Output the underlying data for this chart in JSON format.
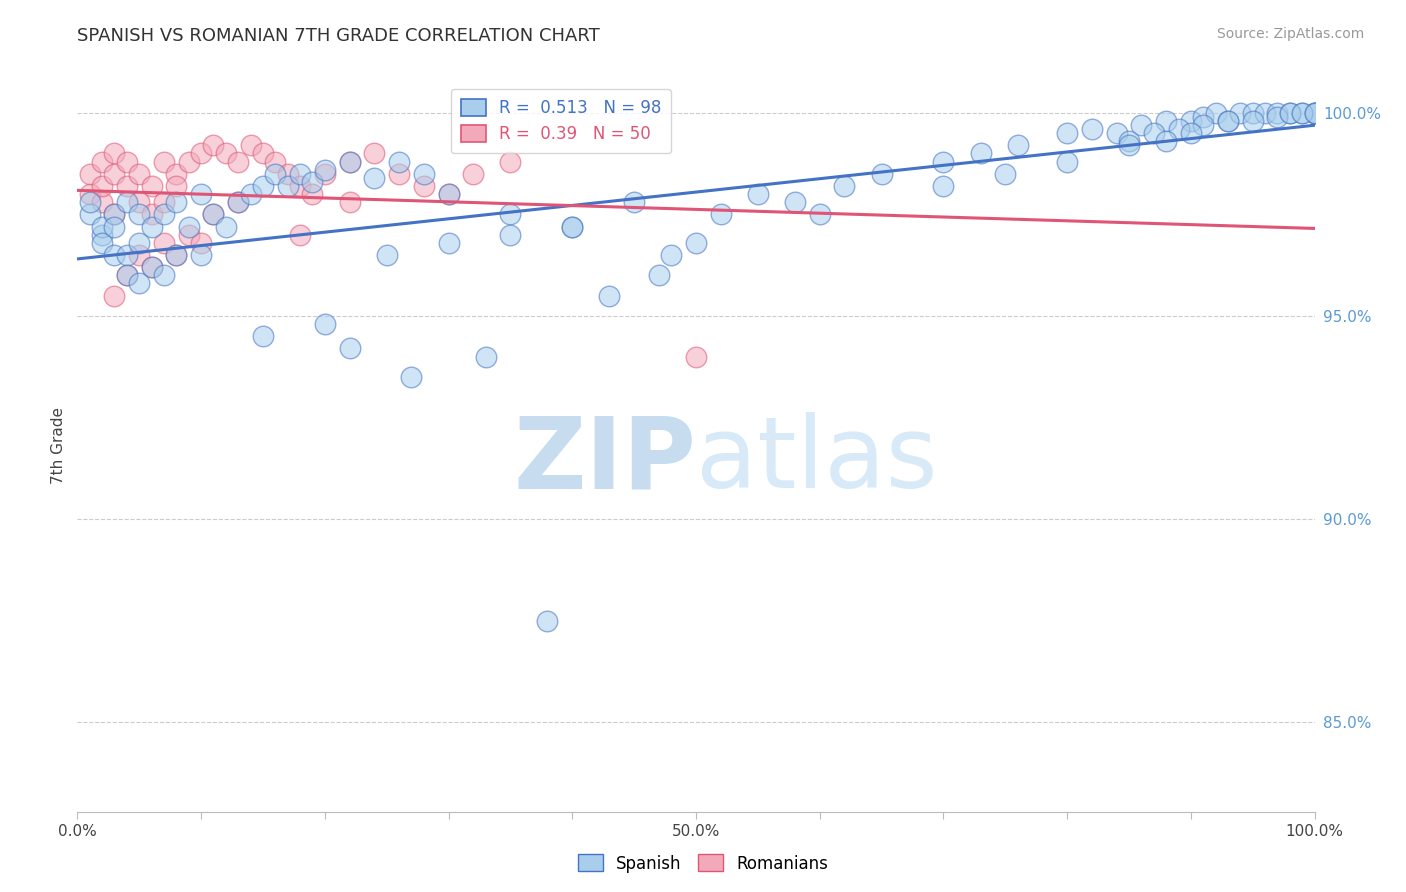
{
  "title": "SPANISH VS ROMANIAN 7TH GRADE CORRELATION CHART",
  "source": "Source: ZipAtlas.com",
  "ylabel": "7th Grade",
  "legend_labels": [
    "Spanish",
    "Romanians"
  ],
  "legend_R": [
    0.513,
    0.39
  ],
  "legend_N": [
    98,
    50
  ],
  "xlim": [
    0.0,
    1.0
  ],
  "ylim": [
    0.828,
    1.008
  ],
  "yticks": [
    0.85,
    0.9,
    0.95,
    1.0
  ],
  "ytick_labels": [
    "85.0%",
    "90.0%",
    "95.0%",
    "100.0%"
  ],
  "xticks": [
    0.0,
    0.1,
    0.2,
    0.3,
    0.4,
    0.5,
    0.6,
    0.7,
    0.8,
    0.9,
    1.0
  ],
  "xtick_labels": [
    "0.0%",
    "",
    "",
    "",
    "",
    "50.0%",
    "",
    "",
    "",
    "",
    "100.0%"
  ],
  "color_spanish": "#A8CEEC",
  "color_romanian": "#F2AABA",
  "color_line_spanish": "#4472C4",
  "color_line_romanian": "#E05575",
  "background_color": "#FFFFFF",
  "grid_color": "#CCCCCC",
  "spanish_x": [
    0.01,
    0.01,
    0.02,
    0.02,
    0.02,
    0.03,
    0.03,
    0.03,
    0.04,
    0.04,
    0.04,
    0.05,
    0.05,
    0.05,
    0.06,
    0.06,
    0.07,
    0.07,
    0.08,
    0.08,
    0.09,
    0.1,
    0.1,
    0.11,
    0.12,
    0.13,
    0.14,
    0.15,
    0.16,
    0.17,
    0.18,
    0.19,
    0.2,
    0.22,
    0.24,
    0.26,
    0.28,
    0.3,
    0.35,
    0.4,
    0.45,
    0.48,
    0.52,
    0.55,
    0.58,
    0.62,
    0.65,
    0.7,
    0.73,
    0.76,
    0.8,
    0.82,
    0.84,
    0.86,
    0.88,
    0.9,
    0.91,
    0.92,
    0.93,
    0.94,
    0.95,
    0.96,
    0.97,
    0.98,
    0.99,
    1.0,
    1.0,
    1.0,
    0.85,
    0.87,
    0.89,
    0.91,
    0.93,
    0.95,
    0.97,
    0.98,
    0.99,
    1.0,
    0.5,
    0.6,
    0.7,
    0.75,
    0.8,
    0.85,
    0.88,
    0.9,
    0.25,
    0.3,
    0.35,
    0.4,
    0.15,
    0.2,
    0.22,
    0.27,
    0.33,
    0.38,
    0.43,
    0.47
  ],
  "spanish_y": [
    0.975,
    0.978,
    0.97,
    0.972,
    0.968,
    0.975,
    0.972,
    0.965,
    0.978,
    0.965,
    0.96,
    0.975,
    0.968,
    0.958,
    0.972,
    0.962,
    0.975,
    0.96,
    0.978,
    0.965,
    0.972,
    0.98,
    0.965,
    0.975,
    0.972,
    0.978,
    0.98,
    0.982,
    0.985,
    0.982,
    0.985,
    0.983,
    0.986,
    0.988,
    0.984,
    0.988,
    0.985,
    0.98,
    0.975,
    0.972,
    0.978,
    0.965,
    0.975,
    0.98,
    0.978,
    0.982,
    0.985,
    0.988,
    0.99,
    0.992,
    0.995,
    0.996,
    0.995,
    0.997,
    0.998,
    0.998,
    0.999,
    1.0,
    0.998,
    1.0,
    1.0,
    1.0,
    1.0,
    1.0,
    1.0,
    1.0,
    1.0,
    1.0,
    0.993,
    0.995,
    0.996,
    0.997,
    0.998,
    0.998,
    0.999,
    1.0,
    1.0,
    1.0,
    0.968,
    0.975,
    0.982,
    0.985,
    0.988,
    0.992,
    0.993,
    0.995,
    0.965,
    0.968,
    0.97,
    0.972,
    0.945,
    0.948,
    0.942,
    0.935,
    0.94,
    0.875,
    0.955,
    0.96
  ],
  "romanian_x": [
    0.01,
    0.01,
    0.02,
    0.02,
    0.02,
    0.03,
    0.03,
    0.03,
    0.04,
    0.04,
    0.05,
    0.05,
    0.06,
    0.06,
    0.07,
    0.07,
    0.08,
    0.08,
    0.09,
    0.1,
    0.11,
    0.12,
    0.13,
    0.14,
    0.15,
    0.16,
    0.17,
    0.18,
    0.19,
    0.2,
    0.22,
    0.24,
    0.26,
    0.28,
    0.3,
    0.32,
    0.35,
    0.18,
    0.22,
    0.05,
    0.07,
    0.09,
    0.11,
    0.13,
    0.03,
    0.04,
    0.06,
    0.08,
    0.1,
    0.5
  ],
  "romanian_y": [
    0.98,
    0.985,
    0.978,
    0.982,
    0.988,
    0.985,
    0.975,
    0.99,
    0.982,
    0.988,
    0.985,
    0.978,
    0.982,
    0.975,
    0.988,
    0.978,
    0.985,
    0.982,
    0.988,
    0.99,
    0.992,
    0.99,
    0.988,
    0.992,
    0.99,
    0.988,
    0.985,
    0.982,
    0.98,
    0.985,
    0.988,
    0.99,
    0.985,
    0.982,
    0.98,
    0.985,
    0.988,
    0.97,
    0.978,
    0.965,
    0.968,
    0.97,
    0.975,
    0.978,
    0.955,
    0.96,
    0.962,
    0.965,
    0.968,
    0.94
  ]
}
